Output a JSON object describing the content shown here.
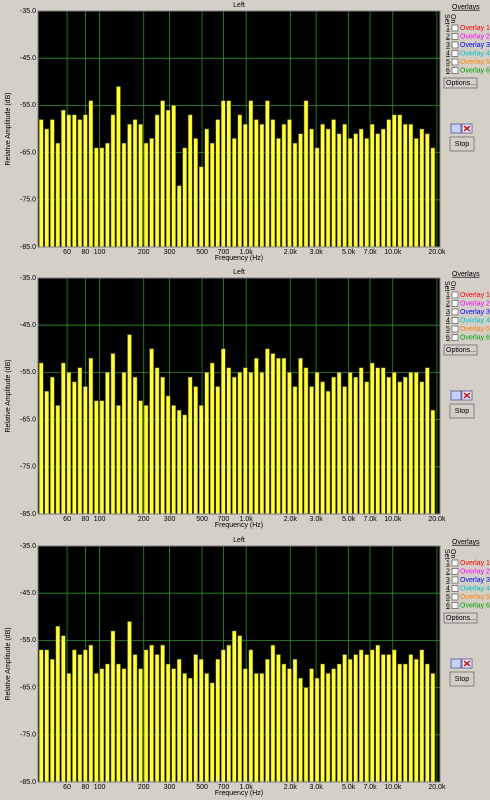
{
  "chart_data": [
    {
      "type": "bar",
      "title": "Left",
      "xlabel": "Frequency (Hz)",
      "ylabel": "Relative Amplitude (dB)",
      "color": "#ffff40",
      "log_x": true,
      "grid": true,
      "x": [
        40,
        43.6,
        47.6,
        51.9,
        56.6,
        61.7,
        67.3,
        73.4,
        80,
        87.2,
        95.1,
        103.7,
        113.1,
        123.4,
        134.5,
        146.7,
        160,
        174.5,
        190.3,
        207.5,
        226.3,
        246.8,
        269.1,
        293.5,
        320,
        349,
        380.6,
        415,
        452.5,
        493.5,
        538.2,
        586.9,
        640,
        697.9,
        761.1,
        830,
        905.1,
        987.1,
        1076.4,
        1173.9,
        1280,
        1395.9,
        1522.2,
        1660,
        1810.2,
        1974.1,
        2152.8,
        2347.7,
        2560,
        2791.7,
        3044.4,
        3320,
        3620.4,
        3948.1,
        4305.5,
        4695.3,
        5120,
        5583.5,
        6088.9,
        6640.1,
        7240.8,
        7896.3,
        8611.1,
        9390.6,
        10240,
        11167,
        12177.7,
        13280.1,
        14481.5,
        15792.6,
        17222.1,
        18781.2
      ],
      "values": [
        -58,
        -60,
        -58,
        -63,
        -56,
        -57,
        -57,
        -58,
        -57,
        -54,
        -64,
        -64,
        -63,
        -57,
        -51,
        -63,
        -59,
        -58,
        -59,
        -63,
        -62,
        -57,
        -54,
        -56,
        -55,
        -72,
        -64,
        -57,
        -62,
        -68,
        -60,
        -63,
        -58,
        -54,
        -54,
        -62,
        -57,
        -59,
        -54,
        -58,
        -59,
        -54,
        -58,
        -62,
        -59,
        -58,
        -63,
        -61,
        -54,
        -60,
        -64,
        -59,
        -60,
        -58,
        -61,
        -59,
        -62,
        -61,
        -60,
        -62,
        -59,
        -61,
        -60,
        -58,
        -57,
        -57,
        -59,
        -59,
        -62,
        -60,
        -61,
        -64
      ],
      "xlim": [
        38,
        21000
      ],
      "ylim": [
        -85,
        -35
      ],
      "xticks": [
        60,
        80,
        100,
        200,
        300,
        500,
        700,
        {
          "value": 1000,
          "label": "1.0k"
        },
        {
          "value": 2000,
          "label": "2.0k"
        },
        {
          "value": 3000,
          "label": "3.0k"
        },
        {
          "value": 5000,
          "label": "5.0k"
        },
        {
          "value": 7000,
          "label": "7.0k"
        },
        {
          "value": 10000,
          "label": "10.0k"
        },
        {
          "value": 20000,
          "label": "20.0k"
        }
      ],
      "yticks": [
        {
          "value": -35,
          "label": "-35.0"
        },
        {
          "value": -45,
          "label": "-45.0"
        },
        {
          "value": -55,
          "label": "-55.0"
        },
        {
          "value": -65,
          "label": "-65.0"
        },
        {
          "value": -75,
          "label": "-75.0"
        },
        {
          "value": -85,
          "label": "-85.0"
        }
      ]
    },
    {
      "type": "bar",
      "title": "Left",
      "xlabel": "Frequency (Hz)",
      "ylabel": "Relative Amplitude (dB)",
      "color": "#ffff40",
      "log_x": true,
      "grid": true,
      "x": [
        40,
        43.6,
        47.6,
        51.9,
        56.6,
        61.7,
        67.3,
        73.4,
        80,
        87.2,
        95.1,
        103.7,
        113.1,
        123.4,
        134.5,
        146.7,
        160,
        174.5,
        190.3,
        207.5,
        226.3,
        246.8,
        269.1,
        293.5,
        320,
        349,
        380.6,
        415,
        452.5,
        493.5,
        538.2,
        586.9,
        640,
        697.9,
        761.1,
        830,
        905.1,
        987.1,
        1076.4,
        1173.9,
        1280,
        1395.9,
        1522.2,
        1660,
        1810.2,
        1974.1,
        2152.8,
        2347.7,
        2560,
        2791.7,
        3044.4,
        3320,
        3620.4,
        3948.1,
        4305.5,
        4695.3,
        5120,
        5583.5,
        6088.9,
        6640.1,
        7240.8,
        7896.3,
        8611.1,
        9390.6,
        10240,
        11167,
        12177.7,
        13280.1,
        14481.5,
        15792.6,
        17222.1,
        18781.2
      ],
      "values": [
        -53,
        -59,
        -56,
        -62,
        -53,
        -55,
        -57,
        -54,
        -58,
        -52,
        -61,
        -61,
        -55,
        -51,
        -62,
        -55,
        -47,
        -56,
        -61,
        -62,
        -50,
        -54,
        -56,
        -60,
        -62,
        -63,
        -64,
        -56,
        -58,
        -62,
        -55,
        -53,
        -58,
        -50,
        -54,
        -56,
        -55,
        -54,
        -55,
        -52,
        -55,
        -50,
        -51,
        -52,
        -52,
        -55,
        -58,
        -52,
        -54,
        -58,
        -55,
        -57,
        -59,
        -56,
        -55,
        -58,
        -55,
        -56,
        -54,
        -57,
        -53,
        -54,
        -54,
        -56,
        -55,
        -57,
        -56,
        -55,
        -55,
        -57,
        -54,
        -63
      ],
      "xlim": [
        38,
        21000
      ],
      "ylim": [
        -85,
        -35
      ],
      "xticks": [
        60,
        80,
        100,
        200,
        300,
        500,
        700,
        {
          "value": 1000,
          "label": "1.0k"
        },
        {
          "value": 2000,
          "label": "2.0k"
        },
        {
          "value": 3000,
          "label": "3.0k"
        },
        {
          "value": 5000,
          "label": "5.0k"
        },
        {
          "value": 7000,
          "label": "7.0k"
        },
        {
          "value": 10000,
          "label": "10.0k"
        },
        {
          "value": 20000,
          "label": "20.0k"
        }
      ],
      "yticks": [
        {
          "value": -35,
          "label": "-35.0"
        },
        {
          "value": -45,
          "label": "-45.0"
        },
        {
          "value": -55,
          "label": "-55.0"
        },
        {
          "value": -65,
          "label": "-65.0"
        },
        {
          "value": -75,
          "label": "-75.0"
        },
        {
          "value": -85,
          "label": "-85.0"
        }
      ]
    },
    {
      "type": "bar",
      "title": "Left",
      "xlabel": "Frequency (Hz)",
      "ylabel": "Relative Amplitude (dB)",
      "color": "#ffff40",
      "log_x": true,
      "grid": true,
      "x": [
        40,
        43.6,
        47.6,
        51.9,
        56.6,
        61.7,
        67.3,
        73.4,
        80,
        87.2,
        95.1,
        103.7,
        113.1,
        123.4,
        134.5,
        146.7,
        160,
        174.5,
        190.3,
        207.5,
        226.3,
        246.8,
        269.1,
        293.5,
        320,
        349,
        380.6,
        415,
        452.5,
        493.5,
        538.2,
        586.9,
        640,
        697.9,
        761.1,
        830,
        905.1,
        987.1,
        1076.4,
        1173.9,
        1280,
        1395.9,
        1522.2,
        1660,
        1810.2,
        1974.1,
        2152.8,
        2347.7,
        2560,
        2791.7,
        3044.4,
        3320,
        3620.4,
        3948.1,
        4305.5,
        4695.3,
        5120,
        5583.5,
        6088.9,
        6640.1,
        7240.8,
        7896.3,
        8611.1,
        9390.6,
        10240,
        11167,
        12177.7,
        13280.1,
        14481.5,
        15792.6,
        17222.1,
        18781.2
      ],
      "values": [
        -57,
        -57,
        -59,
        -52,
        -54,
        -62,
        -57,
        -58,
        -57,
        -56,
        -62,
        -61,
        -60,
        -53,
        -60,
        -61,
        -51,
        -58,
        -61,
        -57,
        -56,
        -58,
        -56,
        -60,
        -61,
        -59,
        -62,
        -63,
        -58,
        -59,
        -62,
        -64,
        -59,
        -57,
        -56,
        -53,
        -54,
        -61,
        -57,
        -62,
        -62,
        -59,
        -56,
        -58,
        -60,
        -61,
        -59,
        -63,
        -65,
        -61,
        -63,
        -60,
        -62,
        -61,
        -60,
        -58,
        -59,
        -58,
        -57,
        -58,
        -57,
        -56,
        -58,
        -58,
        -57,
        -60,
        -60,
        -58,
        -59,
        -57,
        -60,
        -62
      ],
      "xlim": [
        38,
        21000
      ],
      "ylim": [
        -85,
        -35
      ],
      "xticks": [
        60,
        80,
        100,
        200,
        300,
        500,
        700,
        {
          "value": 1000,
          "label": "1.0k"
        },
        {
          "value": 2000,
          "label": "2.0k"
        },
        {
          "value": 3000,
          "label": "3.0k"
        },
        {
          "value": 5000,
          "label": "5.0k"
        },
        {
          "value": 7000,
          "label": "7.0k"
        },
        {
          "value": 10000,
          "label": "10.0k"
        },
        {
          "value": 20000,
          "label": "20.0k"
        }
      ],
      "yticks": [
        {
          "value": -35,
          "label": "-35.0"
        },
        {
          "value": -45,
          "label": "-45.0"
        },
        {
          "value": -55,
          "label": "-55.0"
        },
        {
          "value": -65,
          "label": "-65.0"
        },
        {
          "value": -75,
          "label": "-75.0"
        },
        {
          "value": -85,
          "label": "-85.0"
        }
      ]
    }
  ],
  "panels": [
    {
      "heading": "Overlays",
      "set": "Set",
      "on": "On",
      "overlays": [
        {
          "num": "1",
          "label": "Overlay 1",
          "color": "#ff0000"
        },
        {
          "num": "2",
          "label": "Overlay 2",
          "color": "#ff00ff"
        },
        {
          "num": "3",
          "label": "Overlay 3",
          "color": "#0000ff"
        },
        {
          "num": "4",
          "label": "Overlay 4",
          "color": "#00c0c0"
        },
        {
          "num": "5",
          "label": "Overlay 5",
          "color": "#ff8000"
        },
        {
          "num": "6",
          "label": "Overlay 6",
          "color": "#00a000"
        }
      ],
      "options": "Options...",
      "stop": "Stop"
    },
    {
      "heading": "Overlays",
      "set": "Set",
      "on": "On",
      "overlays": [
        {
          "num": "1",
          "label": "Overlay 1",
          "color": "#ff0000"
        },
        {
          "num": "2",
          "label": "Overlay 2",
          "color": "#ff00ff"
        },
        {
          "num": "3",
          "label": "Overlay 3",
          "color": "#0000ff"
        },
        {
          "num": "4",
          "label": "Overlay 4",
          "color": "#00c0c0"
        },
        {
          "num": "5",
          "label": "Overlay 5",
          "color": "#ff8000"
        },
        {
          "num": "6",
          "label": "Overlay 6",
          "color": "#00a000"
        }
      ],
      "options": "Options...",
      "stop": "Stop"
    },
    {
      "heading": "Overlays",
      "set": "Set",
      "on": "On",
      "overlays": [
        {
          "num": "1",
          "label": "Overlay 1",
          "color": "#ff0000"
        },
        {
          "num": "2",
          "label": "Overlay 2",
          "color": "#ff00ff"
        },
        {
          "num": "3",
          "label": "Overlay 3",
          "color": "#0000ff"
        },
        {
          "num": "4",
          "label": "Overlay 4",
          "color": "#00c0c0"
        },
        {
          "num": "5",
          "label": "Overlay 5",
          "color": "#ff8000"
        },
        {
          "num": "6",
          "label": "Overlay 6",
          "color": "#00a000"
        }
      ],
      "options": "Options...",
      "stop": "Stop"
    }
  ]
}
